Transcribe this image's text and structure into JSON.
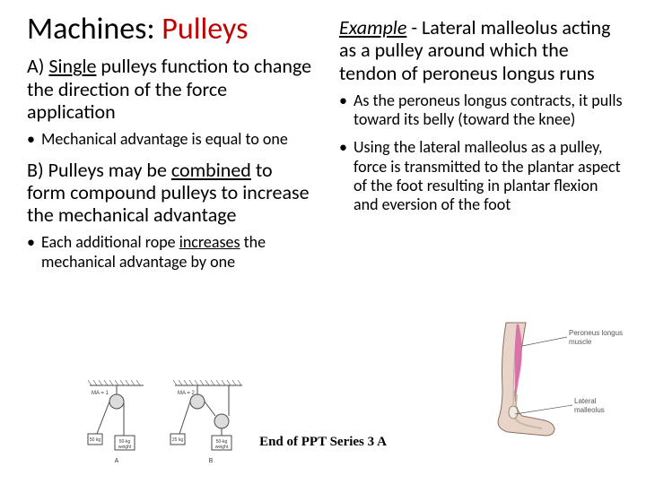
{
  "title": {
    "prefix": "Machines: ",
    "accent": "Pulleys",
    "accent_color": "#c00000"
  },
  "left": {
    "headingA_pre": "A) ",
    "headingA_u": "Single",
    "headingA_post": " pulleys function to change the direction of the force application",
    "bulletA": "Mechanical advantage is equal to one",
    "headingB_pre": "B) Pulleys may be ",
    "headingB_u": "combined",
    "headingB_post": " to form compound pulleys to increase the mechanical advantage",
    "bulletB_pre": "Each additional rope ",
    "bulletB_u": "increases",
    "bulletB_post": " the mechanical advantage by one"
  },
  "right": {
    "example_label": "Example",
    "example_rest": " - Lateral malleolus acting as a pulley around which the tendon of peroneus longus runs",
    "bullet1": "As the peroneus longus contracts, it pulls toward its belly (toward the knee)",
    "bullet2": "Using the lateral malleolus as a pulley, force is transmitted to the plantar aspect of the foot resulting in plantar flexion and eversion of the foot"
  },
  "footer": "End of PPT Series 3 A",
  "pulley_diagram": {
    "labels": {
      "ma1": "MA = 1",
      "ma2": "MA = 2",
      "a": "A",
      "b": "B",
      "w1": "50-kg weight",
      "w2": "50-kg weight",
      "f25": "25 kg",
      "f50": "50 kg"
    },
    "colors": {
      "line": "#4a4a4a",
      "fill": "#dcdcdc",
      "text": "#3a3a3a"
    },
    "line_width": 1
  },
  "foot_diagram": {
    "labels": {
      "muscle": "Peroneus longus muscle",
      "mall": "Lateral malleolus"
    },
    "colors": {
      "skin": "#e8d4c8",
      "outline": "#8a7060",
      "muscle": "#d86aa8",
      "tendon": "#c8b8a8",
      "bone": "#f0ece4",
      "label": "#555555"
    }
  }
}
